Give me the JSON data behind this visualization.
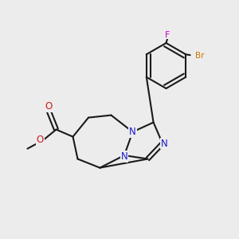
{
  "bg": "#ececec",
  "bc": "#1a1a1a",
  "nc": "#1a1acc",
  "oc": "#cc1a1a",
  "brc": "#cc7700",
  "fc": "#cc00cc",
  "lw": 1.5,
  "fs": 7.5,
  "xlim": [
    0,
    10
  ],
  "ylim": [
    0,
    10
  ]
}
